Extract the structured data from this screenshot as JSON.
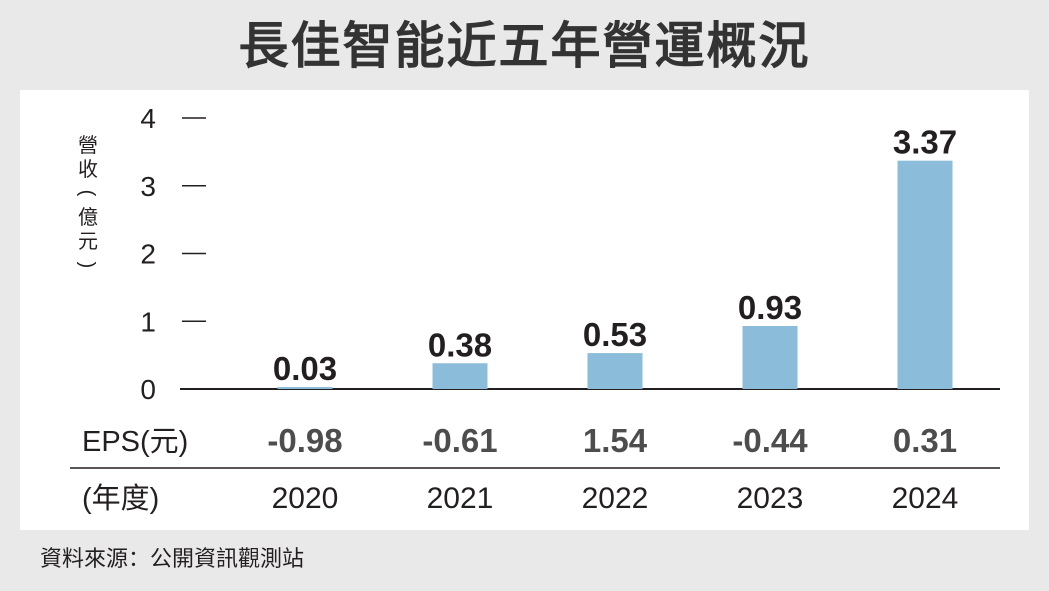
{
  "title": "長佳智能近五年營運概況",
  "source": "資料來源：公開資訊觀測站",
  "colors": {
    "bar": "#8bbcd9",
    "text": "#231f20",
    "eps_text": "#4d4d4d",
    "title": "#333333",
    "background": "#e9e9e9",
    "panel": "#ffffff"
  },
  "chart_data": {
    "type": "bar",
    "ylabel": "營收(億元)",
    "ylim": [
      0,
      4
    ],
    "yticks": [
      0,
      1,
      2,
      3,
      4
    ],
    "grid": false,
    "categories": [
      "2020",
      "2021",
      "2022",
      "2023",
      "2024"
    ],
    "series": [
      {
        "values": [
          0.03,
          0.38,
          0.53,
          0.93,
          3.37
        ]
      }
    ],
    "value_labels": [
      "0.03",
      "0.38",
      "0.53",
      "0.93",
      "3.37"
    ],
    "eps_label": "EPS(元)",
    "eps_values": [
      "-0.98",
      "-0.61",
      "1.54",
      "-0.44",
      "0.31"
    ],
    "year_label": "(年度)"
  }
}
